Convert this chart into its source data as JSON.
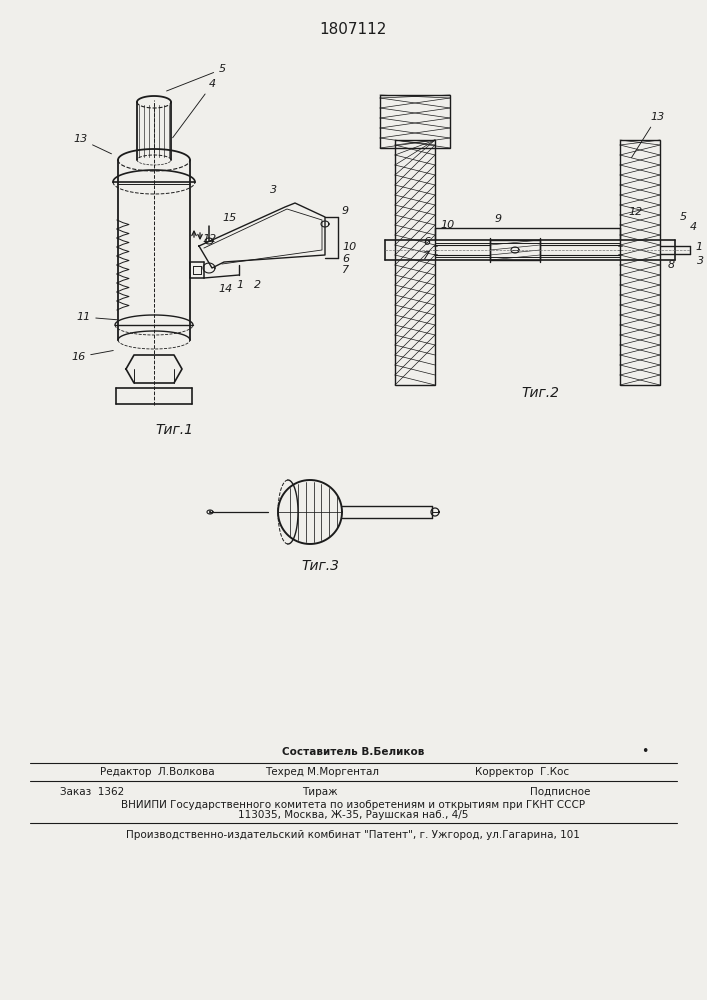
{
  "title": "1807112",
  "bg_color": "#f0efeb",
  "fig1_caption": "Τиг.1",
  "fig2_caption": "Τиг.2",
  "fig3_caption": "Τиг.3",
  "footer_col1_row1": "Редактор  Л.Волкова",
  "footer_col2_row0": "Составитель В.Беликов",
  "footer_col2_row1": "Техред М.Моргентал",
  "footer_col3_row1": "Корректор  Г.Кос",
  "footer_col1_row2": "Заказ  1362",
  "footer_col2_row2": "Тираж",
  "footer_col3_row2": "Подписное",
  "footer_row3": "ВНИИПИ Государственного комитета по изобретениям и открытиям при ГКНТ СССР",
  "footer_row4": "113035, Москва, Ж-35, Раушская наб., 4/5",
  "footer_row5": "Производственно-издательский комбинат \"Патент\", г. Ужгород, ул.Гагарина, 101"
}
